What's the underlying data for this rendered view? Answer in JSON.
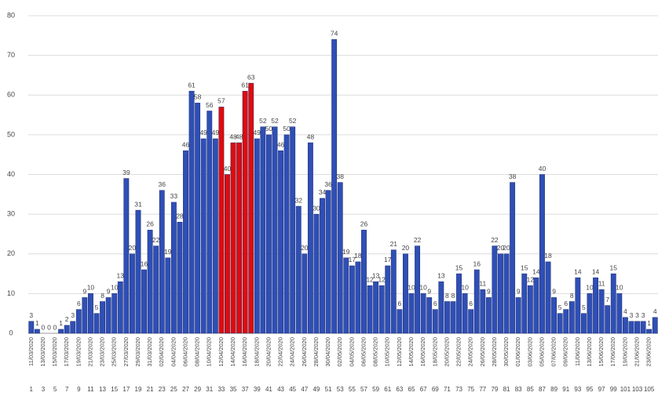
{
  "chart_data": {
    "type": "bar",
    "categories": [
      "11/03/2020",
      null,
      "13/03/2020",
      null,
      "15/03/2020",
      null,
      "17/03/2020",
      null,
      "19/03/2020",
      null,
      "21/03/2020",
      null,
      "23/03/2020",
      null,
      "25/03/2020",
      null,
      "27/03/2020",
      null,
      "29/03/2020",
      null,
      "31/03/2020",
      null,
      "02/04/2020",
      null,
      "04/04/2020",
      null,
      "06/04/2020",
      null,
      "08/04/2020",
      null,
      "10/04/2020",
      null,
      "12/04/2020",
      null,
      "14/04/2020",
      null,
      "16/04/2020",
      null,
      "18/04/2020",
      null,
      "20/04/2020",
      null,
      "22/04/2020",
      null,
      "24/04/2020",
      null,
      "26/04/2020",
      null,
      "28/04/2020",
      null,
      "30/04/2020",
      null,
      "02/05/2020",
      null,
      "04/05/2020",
      null,
      "06/05/2020",
      null,
      "08/05/2020",
      null,
      "10/05/2020",
      null,
      "12/05/2020",
      null,
      "14/05/2020",
      null,
      "16/05/2020",
      null,
      "18/05/2020",
      null,
      "20/05/2020",
      null,
      "22/05/2020",
      null,
      "24/05/2020",
      null,
      "26/05/2020",
      null,
      "28/05/2020",
      null,
      "30/05/2020",
      null,
      "01/06/2020",
      null,
      "03/06/2020",
      null,
      "05/06/2020",
      null,
      "07/06/2020",
      null,
      "09/06/2020",
      null,
      "11/06/2020",
      null,
      "13/06/2020",
      null,
      "15/06/2020",
      null,
      "17/06/2020",
      null,
      "19/06/2020",
      null,
      "21/06/2020",
      null,
      "23/06/2020",
      null
    ],
    "day_numbers": [
      1,
      null,
      3,
      null,
      5,
      null,
      7,
      null,
      9,
      null,
      11,
      null,
      13,
      null,
      15,
      null,
      17,
      null,
      19,
      null,
      21,
      null,
      23,
      null,
      25,
      null,
      27,
      null,
      29,
      null,
      31,
      null,
      33,
      null,
      35,
      null,
      37,
      null,
      39,
      null,
      41,
      null,
      43,
      null,
      45,
      null,
      47,
      null,
      49,
      null,
      51,
      null,
      53,
      null,
      55,
      null,
      57,
      null,
      59,
      null,
      61,
      null,
      63,
      null,
      65,
      null,
      67,
      null,
      69,
      null,
      71,
      null,
      73,
      null,
      75,
      null,
      77,
      null,
      79,
      null,
      81,
      null,
      83,
      null,
      85,
      null,
      87,
      null,
      89,
      null,
      91,
      null,
      93,
      null,
      95,
      null,
      97,
      null,
      99,
      null,
      101,
      null,
      103,
      null,
      105,
      null
    ],
    "values": [
      3,
      1,
      0,
      0,
      0,
      1,
      2,
      3,
      6,
      9,
      10,
      5,
      8,
      9,
      10,
      13,
      39,
      20,
      31,
      16,
      26,
      22,
      36,
      19,
      33,
      28,
      46,
      61,
      58,
      49,
      56,
      49,
      57,
      40,
      48,
      48,
      61,
      63,
      49,
      52,
      50,
      52,
      46,
      50,
      52,
      32,
      20,
      48,
      30,
      34,
      36,
      74,
      38,
      19,
      17,
      18,
      26,
      12,
      13,
      12,
      17,
      21,
      6,
      20,
      10,
      22,
      10,
      9,
      6,
      13,
      8,
      8,
      15,
      10,
      6,
      16,
      11,
      9,
      22,
      20,
      20,
      38,
      9,
      15,
      12,
      14,
      40,
      18,
      9,
      5,
      6,
      8,
      14,
      5,
      10,
      14,
      11,
      7,
      15,
      10,
      4,
      3,
      3,
      3,
      1,
      4
    ],
    "colors": [
      "#2f4fb5",
      "#2f4fb5",
      "#2f4fb5",
      "#2f4fb5",
      "#2f4fb5",
      "#2f4fb5",
      "#2f4fb5",
      "#2f4fb5",
      "#2f4fb5",
      "#2f4fb5",
      "#2f4fb5",
      "#2f4fb5",
      "#2f4fb5",
      "#2f4fb5",
      "#2f4fb5",
      "#2f4fb5",
      "#2f4fb5",
      "#2f4fb5",
      "#2f4fb5",
      "#2f4fb5",
      "#2f4fb5",
      "#2f4fb5",
      "#2f4fb5",
      "#2f4fb5",
      "#2f4fb5",
      "#2f4fb5",
      "#2f4fb5",
      "#2f4fb5",
      "#2f4fb5",
      "#2f4fb5",
      "#2f4fb5",
      "#2f4fb5",
      "#e20a0a",
      "#e20a0a",
      "#e20a0a",
      "#e20a0a",
      "#e20a0a",
      "#e20a0a",
      "#2f4fb5",
      "#2f4fb5",
      "#2f4fb5",
      "#2f4fb5",
      "#2f4fb5",
      "#2f4fb5",
      "#2f4fb5",
      "#2f4fb5",
      "#2f4fb5",
      "#2f4fb5",
      "#2f4fb5",
      "#2f4fb5",
      "#2f4fb5",
      "#2f4fb5",
      "#2f4fb5",
      "#2f4fb5",
      "#2f4fb5",
      "#2f4fb5",
      "#2f4fb5",
      "#2f4fb5",
      "#2f4fb5",
      "#2f4fb5",
      "#2f4fb5",
      "#2f4fb5",
      "#2f4fb5",
      "#2f4fb5",
      "#2f4fb5",
      "#2f4fb5",
      "#2f4fb5",
      "#2f4fb5",
      "#2f4fb5",
      "#2f4fb5",
      "#2f4fb5",
      "#2f4fb5",
      "#2f4fb5",
      "#2f4fb5",
      "#2f4fb5",
      "#2f4fb5",
      "#2f4fb5",
      "#2f4fb5",
      "#2f4fb5",
      "#2f4fb5",
      "#2f4fb5",
      "#2f4fb5",
      "#2f4fb5",
      "#2f4fb5",
      "#2f4fb5",
      "#2f4fb5",
      "#2f4fb5",
      "#2f4fb5",
      "#2f4fb5",
      "#2f4fb5",
      "#2f4fb5",
      "#2f4fb5",
      "#2f4fb5",
      "#2f4fb5",
      "#2f4fb5",
      "#2f4fb5",
      "#2f4fb5",
      "#2f4fb5",
      "#2f4fb5",
      "#2f4fb5",
      "#2f4fb5",
      "#2f4fb5",
      "#2f4fb5",
      "#2f4fb5",
      "#2f4fb5",
      "#2f4fb5"
    ],
    "ylim": [
      0,
      80
    ],
    "yticks": [
      0,
      10,
      20,
      30,
      40,
      50,
      60,
      70,
      80
    ],
    "grid": true
  }
}
